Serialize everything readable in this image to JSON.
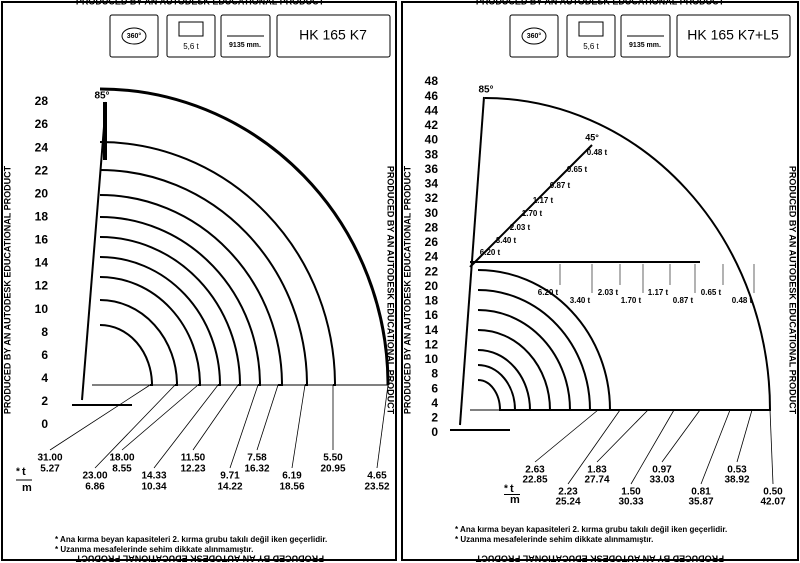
{
  "watermark": "PRODUCED BY AN AUTODESK EDUCATIONAL PRODUCT",
  "notes": [
    "* Ana kırma beyan kapasiteleri 2. kırma grubu takılı değil iken geçerlidir.",
    "* Uzanma mesafelerinde sehim dikkate alınmamıştır."
  ],
  "panels": [
    {
      "badges": {
        "rotation": "360°",
        "weight": "5,6 t",
        "width": "9135 mm."
      },
      "model": "HK 165 K7",
      "boom_angle": "85°",
      "y_axis": [
        0,
        2,
        4,
        6,
        8,
        10,
        12,
        14,
        16,
        18,
        20,
        22,
        24,
        26,
        28
      ],
      "unit_t": "t",
      "unit_m": "m",
      "star": "*",
      "loads": [
        {
          "t": "31.00",
          "m": "5.27"
        },
        {
          "t": "23.00",
          "m": "6.86"
        },
        {
          "t": "18.00",
          "m": "8.55"
        },
        {
          "t": "14.33",
          "m": "10.34"
        },
        {
          "t": "11.50",
          "m": "12.23"
        },
        {
          "t": "9.71",
          "m": "14.22"
        },
        {
          "t": "7.58",
          "m": "16.32"
        },
        {
          "t": "6.19",
          "m": "18.56"
        },
        {
          "t": "5.50",
          "m": "20.95"
        },
        {
          "t": "4.65",
          "m": "23.52"
        }
      ]
    },
    {
      "badges": {
        "rotation": "360°",
        "weight": "5,6 t",
        "width": "9135 mm."
      },
      "model": "HK 165 K7+L5",
      "boom_angle": "85°",
      "jib_angle": "45°",
      "y_axis": [
        0,
        2,
        4,
        6,
        8,
        10,
        12,
        14,
        16,
        18,
        20,
        22,
        24,
        26,
        28,
        30,
        32,
        34,
        36,
        38,
        40,
        42,
        44,
        46,
        48
      ],
      "unit_t": "t",
      "unit_m": "m",
      "star": "*",
      "jib_luffing": [
        "6.20 t",
        "3.40 t",
        "2.03 t",
        "1.70 t",
        "1.17 t",
        "0.87 t",
        "0.65 t",
        "0.48 t"
      ],
      "jib_horizontal": [
        "6.20 t",
        "3.40 t",
        "2.03 t",
        "1.70 t",
        "1.17 t",
        "0.87 t",
        "0.65 t",
        "0.48 t"
      ],
      "loads": [
        {
          "t": "2.63",
          "m": "22.85"
        },
        {
          "t": "2.23",
          "m": "25.24"
        },
        {
          "t": "1.83",
          "m": "27.74"
        },
        {
          "t": "1.50",
          "m": "30.33"
        },
        {
          "t": "0.97",
          "m": "33.03"
        },
        {
          "t": "0.81",
          "m": "35.87"
        },
        {
          "t": "0.53",
          "m": "38.92"
        },
        {
          "t": "0.50",
          "m": "42.07"
        }
      ]
    }
  ]
}
